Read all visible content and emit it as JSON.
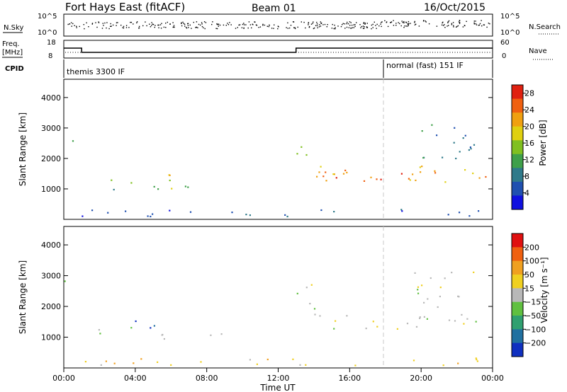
{
  "header": {
    "station": "Fort Hays East (fitACF)",
    "beam": "Beam 01",
    "date": "16/Oct/2015"
  },
  "top_panels": {
    "nsky_label": "N.Sky",
    "nsearch_label": "N.Search",
    "freq_label_1": "Freq.",
    "freq_label_2": "[MHz]",
    "nave_label": "Nave",
    "cpid_label": "CPID",
    "left_ticks_noise": [
      "10^5",
      "10^0"
    ],
    "right_ticks_noise": [
      "10^5",
      "10^0"
    ],
    "left_ticks_freq": [
      "18",
      "8"
    ],
    "right_ticks_freq": [
      "60",
      "0"
    ],
    "cpid_segments": [
      {
        "label": "themis 3300 IF",
        "start_hr": 0,
        "end_hr": 18
      },
      {
        "label": "normal (fast) 151 IF",
        "start_hr": 18,
        "end_hr": 24
      }
    ],
    "freq_series": {
      "x_hr": [
        0,
        1.0,
        1.0,
        13.0,
        13.0,
        24
      ],
      "y_mhz": [
        14,
        14,
        11,
        11,
        14,
        14
      ]
    }
  },
  "chart_data": [
    {
      "type": "heatmap",
      "name": "power",
      "xlabel": "",
      "ylabel": "Slant Range [km]",
      "xlim_hr": [
        0,
        24
      ],
      "ylim_km": [
        0,
        4600
      ],
      "yticks": [
        1000,
        2000,
        3000,
        4000
      ],
      "colorbar": {
        "label": "Power [dB]",
        "ticks": [
          "4",
          "8",
          "12",
          "16",
          "20",
          "24",
          "28"
        ],
        "range": [
          0,
          30
        ],
        "colors": [
          "#1010e0",
          "#2050b0",
          "#2f7a8a",
          "#3fa04a",
          "#80c020",
          "#e0d010",
          "#f0a010",
          "#f06010",
          "#e02010"
        ]
      },
      "regions": [
        {
          "x0": 0.0,
          "x1": 0.5,
          "y0": 2500,
          "y1": 2950,
          "c": 3
        },
        {
          "x0": 1.0,
          "x1": 1.6,
          "y0": 2300,
          "y1": 2450,
          "c": 4
        },
        {
          "x0": 1.8,
          "x1": 3.8,
          "y0": 900,
          "y1": 1350,
          "c": 3
        },
        {
          "x0": 3.4,
          "x1": 6.2,
          "y0": 1300,
          "y1": 1550,
          "c": 5
        },
        {
          "x0": 3.6,
          "x1": 6.6,
          "y0": 950,
          "y1": 1250,
          "c": 4
        },
        {
          "x0": 6.5,
          "x1": 9.0,
          "y0": 1000,
          "y1": 1200,
          "c": 3
        },
        {
          "x0": 13.0,
          "x1": 14.0,
          "y0": 2000,
          "y1": 2800,
          "c": 4
        },
        {
          "x0": 14.0,
          "x1": 24.0,
          "y0": 1250,
          "y1": 1800,
          "c": 6
        },
        {
          "x0": 15.0,
          "x1": 24.0,
          "y0": 1300,
          "y1": 1600,
          "c": 7
        },
        {
          "x0": 19.5,
          "x1": 23.0,
          "y0": 2000,
          "y1": 3200,
          "c": 2
        },
        {
          "x0": 0.5,
          "x1": 24.0,
          "y0": 100,
          "y1": 350,
          "c": 1
        }
      ]
    },
    {
      "type": "heatmap",
      "name": "velocity",
      "xlabel": "Time UT",
      "ylabel": "Slant Range [km]",
      "xlim_hr": [
        0,
        24
      ],
      "ylim_km": [
        0,
        4600
      ],
      "xticks": [
        "00:00",
        "04:00",
        "08:00",
        "12:00",
        "16:00",
        "20:00",
        "00:00"
      ],
      "yticks": [
        1000,
        2000,
        3000,
        4000
      ],
      "colorbar": {
        "label": "Velocity [m s⁻¹]",
        "ticks": [
          "200",
          "100",
          "50",
          "15",
          "−15",
          "−50",
          "−100",
          "−200"
        ],
        "colors": [
          "#1030c0",
          "#2070a0",
          "#30a070",
          "#60c040",
          "#b8b8b8",
          "#f0d020",
          "#f0a020",
          "#f06010",
          "#e01010"
        ]
      },
      "regions": [
        {
          "x0": 0.0,
          "x1": 0.5,
          "y0": 2500,
          "y1": 2950,
          "c": 4
        },
        {
          "x0": 1.0,
          "x1": 1.6,
          "y0": 2300,
          "y1": 2450,
          "c": 4
        },
        {
          "x0": 1.8,
          "x1": 3.8,
          "y0": 900,
          "y1": 1350,
          "c": 3
        },
        {
          "x0": 3.4,
          "x1": 6.2,
          "y0": 1300,
          "y1": 1550,
          "c": 1
        },
        {
          "x0": 3.6,
          "x1": 6.6,
          "y0": 950,
          "y1": 1250,
          "c": 4
        },
        {
          "x0": 6.5,
          "x1": 9.0,
          "y0": 1000,
          "y1": 1200,
          "c": 4
        },
        {
          "x0": 13.0,
          "x1": 14.5,
          "y0": 1900,
          "y1": 2800,
          "c": 4
        },
        {
          "x0": 14.0,
          "x1": 24.0,
          "y0": 1250,
          "y1": 1800,
          "c": 4
        },
        {
          "x0": 19.5,
          "x1": 23.0,
          "y0": 2000,
          "y1": 3200,
          "c": 4
        },
        {
          "x0": 0.5,
          "x1": 24.0,
          "y0": 100,
          "y1": 350,
          "c": 5
        }
      ]
    }
  ]
}
